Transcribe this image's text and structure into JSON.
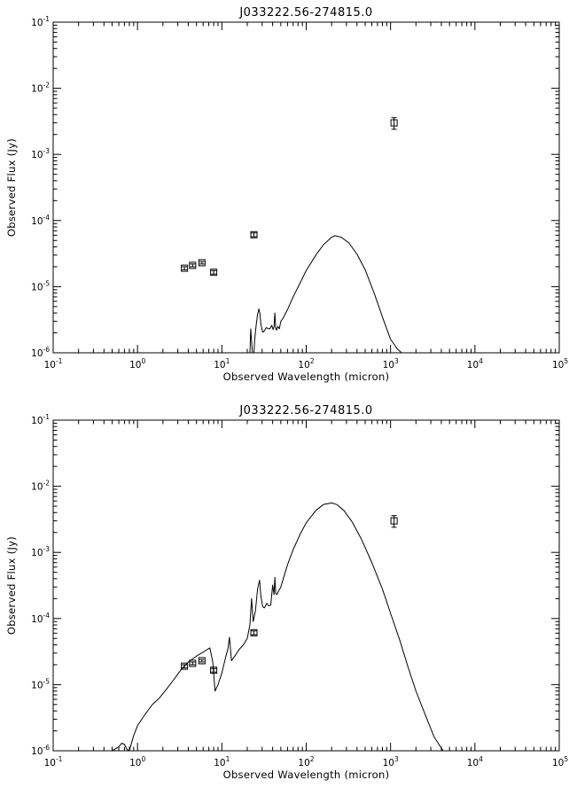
{
  "chart_data": [
    {
      "type": "line",
      "title": "J033222.56-274815.0",
      "xlabel": "Observed Wavelength (micron)",
      "ylabel": "Observed Flux (Jy)",
      "xscale": "log",
      "yscale": "log",
      "xlim": [
        0.1,
        100000
      ],
      "ylim": [
        1e-06,
        0.1
      ],
      "x_tick_labels": [
        {
          "base": "10",
          "exp": "-1",
          "value": 0.1
        },
        {
          "base": "10",
          "exp": "0",
          "value": 1
        },
        {
          "base": "10",
          "exp": "1",
          "value": 10
        },
        {
          "base": "10",
          "exp": "2",
          "value": 100
        },
        {
          "base": "10",
          "exp": "3",
          "value": 1000
        },
        {
          "base": "10",
          "exp": "4",
          "value": 10000
        },
        {
          "base": "10",
          "exp": "5",
          "value": 100000
        }
      ],
      "y_tick_labels": [
        {
          "base": "10",
          "exp": "-6",
          "value": 1e-06
        },
        {
          "base": "10",
          "exp": "-5",
          "value": 1e-05
        },
        {
          "base": "10",
          "exp": "-4",
          "value": 0.0001
        },
        {
          "base": "10",
          "exp": "-3",
          "value": 0.001
        },
        {
          "base": "10",
          "exp": "-2",
          "value": 0.01
        },
        {
          "base": "10",
          "exp": "-1",
          "value": 0.1
        }
      ],
      "observed_points": [
        {
          "x": 3.6,
          "y": 1.9e-05,
          "yerr_low": 1.8e-05,
          "yerr_high": 2e-05
        },
        {
          "x": 4.5,
          "y": 2.1e-05,
          "yerr_low": 2e-05,
          "yerr_high": 2.2e-05
        },
        {
          "x": 5.8,
          "y": 2.3e-05,
          "yerr_low": 2.2e-05,
          "yerr_high": 2.4e-05
        },
        {
          "x": 8.0,
          "y": 1.65e-05,
          "yerr_low": 1.55e-05,
          "yerr_high": 1.75e-05
        },
        {
          "x": 24.0,
          "y": 6.1e-05,
          "yerr_low": 5.7e-05,
          "yerr_high": 6.5e-05
        },
        {
          "x": 1100,
          "y": 0.003,
          "yerr_low": 0.0024,
          "yerr_high": 0.0036
        }
      ],
      "model_curve": {
        "x": [
          21.5,
          22.0,
          22.5,
          23.0,
          23.5,
          24.0,
          24.5,
          25.5,
          26.5,
          27.5,
          28.3,
          29.0,
          30.5,
          32.0,
          33.5,
          35.0,
          37.0,
          39.0,
          40.5,
          41.5,
          42.5,
          43.5,
          44.5,
          46.0,
          48.0,
          50.0,
          53.0,
          56.0,
          60.0,
          70.0,
          85.0,
          100,
          130,
          160,
          200,
          220,
          260,
          320,
          400,
          500,
          650,
          800,
          1000,
          1200,
          1350
        ],
        "y": [
          1e-06,
          2.3e-06,
          1.5e-06,
          1e-06,
          1e-06,
          1e-06,
          1.6e-06,
          2.6e-06,
          3.8e-06,
          4.6e-06,
          3.9e-06,
          2.7e-06,
          2.05e-06,
          2.15e-06,
          2.4e-06,
          2.35e-06,
          2.3e-06,
          2.6e-06,
          2.25e-06,
          2.45e-06,
          4e-06,
          2.35e-06,
          2.2e-06,
          2.5e-06,
          2.3e-06,
          3e-06,
          3.3e-06,
          3.8e-06,
          4.5e-06,
          7e-06,
          1.15e-05,
          1.75e-05,
          3e-05,
          4.3e-05,
          5.6e-05,
          5.9e-05,
          5.6e-05,
          4.6e-05,
          3.1e-05,
          1.8e-05,
          7.5e-06,
          3.5e-06,
          1.6e-06,
          1.15e-06,
          1e-06
        ]
      }
    },
    {
      "type": "line",
      "title": "J033222.56-274815.0",
      "xlabel": "Observed Wavelength (micron)",
      "ylabel": "Observed Flux (Jy)",
      "xscale": "log",
      "yscale": "log",
      "xlim": [
        0.1,
        100000
      ],
      "ylim": [
        1e-06,
        0.1
      ],
      "x_tick_labels": [
        {
          "base": "10",
          "exp": "-1",
          "value": 0.1
        },
        {
          "base": "10",
          "exp": "0",
          "value": 1
        },
        {
          "base": "10",
          "exp": "1",
          "value": 10
        },
        {
          "base": "10",
          "exp": "2",
          "value": 100
        },
        {
          "base": "10",
          "exp": "3",
          "value": 1000
        },
        {
          "base": "10",
          "exp": "4",
          "value": 10000
        },
        {
          "base": "10",
          "exp": "5",
          "value": 100000
        }
      ],
      "y_tick_labels": [
        {
          "base": "10",
          "exp": "-6",
          "value": 1e-06
        },
        {
          "base": "10",
          "exp": "-5",
          "value": 1e-05
        },
        {
          "base": "10",
          "exp": "-4",
          "value": 0.0001
        },
        {
          "base": "10",
          "exp": "-3",
          "value": 0.001
        },
        {
          "base": "10",
          "exp": "-2",
          "value": 0.01
        },
        {
          "base": "10",
          "exp": "-1",
          "value": 0.1
        }
      ],
      "observed_points": [
        {
          "x": 3.6,
          "y": 1.9e-05,
          "yerr_low": 1.8e-05,
          "yerr_high": 2e-05
        },
        {
          "x": 4.5,
          "y": 2.1e-05,
          "yerr_low": 2e-05,
          "yerr_high": 2.2e-05
        },
        {
          "x": 5.8,
          "y": 2.3e-05,
          "yerr_low": 2.2e-05,
          "yerr_high": 2.4e-05
        },
        {
          "x": 8.0,
          "y": 1.65e-05,
          "yerr_low": 1.55e-05,
          "yerr_high": 1.75e-05
        },
        {
          "x": 24.0,
          "y": 6.1e-05,
          "yerr_low": 5.7e-05,
          "yerr_high": 6.5e-05
        },
        {
          "x": 1100,
          "y": 0.003,
          "yerr_low": 0.0024,
          "yerr_high": 0.0036
        }
      ],
      "model_curve": {
        "x": [
          0.5,
          0.6,
          0.65,
          0.7,
          0.75,
          0.8,
          0.9,
          1.0,
          1.2,
          1.5,
          1.8,
          2.2,
          2.7,
          3.3,
          4.0,
          5.0,
          6.0,
          7.2,
          7.8,
          8.3,
          9.0,
          10.0,
          11.0,
          11.8,
          12.3,
          13.0,
          14.5,
          16.0,
          18.0,
          20.0,
          21.5,
          22.5,
          23.5,
          25.0,
          26.5,
          28.0,
          29.0,
          30.5,
          32.0,
          34.0,
          36.0,
          38.0,
          40.0,
          41.5,
          42.5,
          43.5,
          45.0,
          47.0,
          50.0,
          55.0,
          60.0,
          70.0,
          85.0,
          100,
          130,
          160,
          200,
          230,
          280,
          350,
          450,
          600,
          800,
          1000,
          1300,
          1600,
          2000,
          2600,
          3300,
          4200
        ],
        "y": [
          1e-06,
          1.15e-06,
          1.3e-06,
          1.25e-06,
          1.05e-06,
          1e-06,
          1.7e-06,
          2.4e-06,
          3.4e-06,
          5e-06,
          6.2e-06,
          8.5e-06,
          1.2e-05,
          1.7e-05,
          2.2e-05,
          2.7e-05,
          3.1e-05,
          3.6e-05,
          2.2e-05,
          8e-06,
          1e-05,
          1.5e-05,
          2.5e-05,
          3.5e-05,
          5.2e-05,
          2.3e-05,
          2.8e-05,
          3.4e-05,
          4e-05,
          5e-05,
          8e-05,
          0.0002,
          9e-05,
          0.00013,
          0.00028,
          0.00038,
          0.00022,
          0.00015,
          0.000145,
          0.00017,
          0.000155,
          0.00016,
          0.00032,
          0.00023,
          0.00042,
          0.00024,
          0.00023,
          0.00026,
          0.0003,
          0.00045,
          0.00065,
          0.0011,
          0.0019,
          0.0028,
          0.0043,
          0.0053,
          0.0056,
          0.0053,
          0.0043,
          0.0029,
          0.0016,
          0.0007,
          0.00028,
          0.00012,
          4.5e-05,
          1.9e-05,
          8e-06,
          3.4e-06,
          1.6e-06,
          1e-06
        ]
      }
    }
  ]
}
